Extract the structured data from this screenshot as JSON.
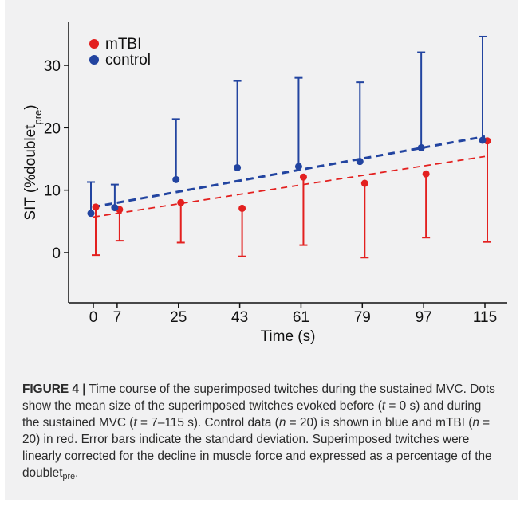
{
  "chart_data": {
    "type": "scatter",
    "x": [
      0,
      7,
      25,
      43,
      61,
      79,
      97,
      115
    ],
    "xticks": [
      "0",
      "7",
      "25",
      "43",
      "61",
      "79",
      "97",
      "115"
    ],
    "yticks": [
      "0",
      "10",
      "20",
      "30"
    ],
    "xlabel": "Time (s)",
    "ylabel_main": "SIT (%doublet",
    "ylabel_sub": "pre",
    "ylabel_close": ")",
    "xlim": [
      -5,
      120
    ],
    "ylim": [
      -8,
      36
    ],
    "legend_position": "top-left",
    "series": [
      {
        "name": "mTBI",
        "color": "#e3201f",
        "values": [
          7.3,
          6.9,
          8.0,
          7.1,
          12.1,
          11.1,
          12.6,
          17.9
        ],
        "error_upper": [
          7.3,
          6.9,
          8.0,
          7.1,
          12.1,
          11.1,
          12.6,
          17.9
        ],
        "error_lower": [
          -0.4,
          1.9,
          1.6,
          -0.6,
          1.2,
          -0.8,
          2.4,
          1.7
        ],
        "trend": [
          5.7,
          15.4
        ]
      },
      {
        "name": "control",
        "color": "#2244a0",
        "values": [
          6.3,
          7.2,
          11.7,
          13.6,
          13.8,
          14.6,
          16.8,
          18.0
        ],
        "error_upper": [
          11.3,
          10.9,
          21.4,
          27.5,
          28.0,
          27.3,
          32.1,
          34.6
        ],
        "error_lower": [
          6.3,
          7.2,
          11.7,
          13.6,
          13.8,
          14.6,
          16.8,
          18.0
        ],
        "trend": [
          7.3,
          18.6
        ]
      }
    ]
  },
  "caption": {
    "label": "FIGURE 4 |",
    "text_parts": [
      " Time course of the superimposed twitches during the sustained MVC. Dots show the mean size of the superimposed twitches evoked before (",
      "t",
      " = 0 s) and during the sustained MVC (",
      "t",
      " = 7–115 s). Control data (",
      "n",
      " = 20) is shown in blue and mTBI (",
      "n",
      " = 20) in red. Error bars indicate the standard deviation. Superimposed twitches were linearly corrected for the decline in muscle force and expressed as a percentage of the doublet",
      "pre",
      "."
    ]
  }
}
